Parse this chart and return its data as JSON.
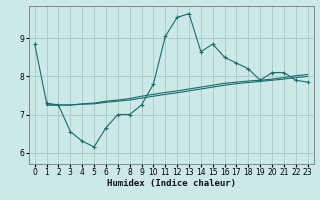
{
  "title": "",
  "xlabel": "Humidex (Indice chaleur)",
  "ylabel": "",
  "bg_color": "#cde8e8",
  "grid_color": "#aacccc",
  "line_color": "#1a6b6b",
  "xlim": [
    -0.5,
    23.5
  ],
  "ylim": [
    5.7,
    9.85
  ],
  "yticks": [
    6,
    7,
    8,
    9
  ],
  "xticks": [
    0,
    1,
    2,
    3,
    4,
    5,
    6,
    7,
    8,
    9,
    10,
    11,
    12,
    13,
    14,
    15,
    16,
    17,
    18,
    19,
    20,
    21,
    22,
    23
  ],
  "series1_x": [
    0,
    1,
    2,
    3,
    4,
    5,
    6,
    7,
    8,
    9,
    10,
    11,
    12,
    13,
    14,
    15,
    16,
    17,
    18,
    19,
    20,
    21,
    22,
    23
  ],
  "series1_y": [
    8.85,
    7.3,
    7.25,
    6.55,
    6.3,
    6.15,
    6.65,
    7.0,
    7.0,
    7.25,
    7.8,
    9.05,
    9.55,
    9.65,
    8.65,
    8.85,
    8.5,
    8.35,
    8.2,
    7.9,
    8.1,
    8.1,
    7.9,
    7.85
  ],
  "series2_x": [
    1,
    2,
    3,
    4,
    5,
    6,
    7,
    8,
    9,
    10,
    11,
    12,
    13,
    14,
    15,
    16,
    17,
    18,
    19,
    20,
    21,
    22,
    23
  ],
  "series2_y": [
    7.25,
    7.25,
    7.25,
    7.28,
    7.3,
    7.35,
    7.38,
    7.42,
    7.48,
    7.53,
    7.58,
    7.62,
    7.67,
    7.72,
    7.77,
    7.82,
    7.85,
    7.88,
    7.9,
    7.93,
    7.97,
    8.02,
    8.05
  ],
  "series3_x": [
    1,
    2,
    3,
    4,
    5,
    6,
    7,
    8,
    9,
    10,
    11,
    12,
    13,
    14,
    15,
    16,
    17,
    18,
    19,
    20,
    21,
    22,
    23
  ],
  "series3_y": [
    7.25,
    7.25,
    7.25,
    7.27,
    7.28,
    7.32,
    7.35,
    7.38,
    7.43,
    7.48,
    7.53,
    7.57,
    7.62,
    7.67,
    7.72,
    7.77,
    7.81,
    7.84,
    7.87,
    7.9,
    7.93,
    7.97,
    8.0
  ]
}
